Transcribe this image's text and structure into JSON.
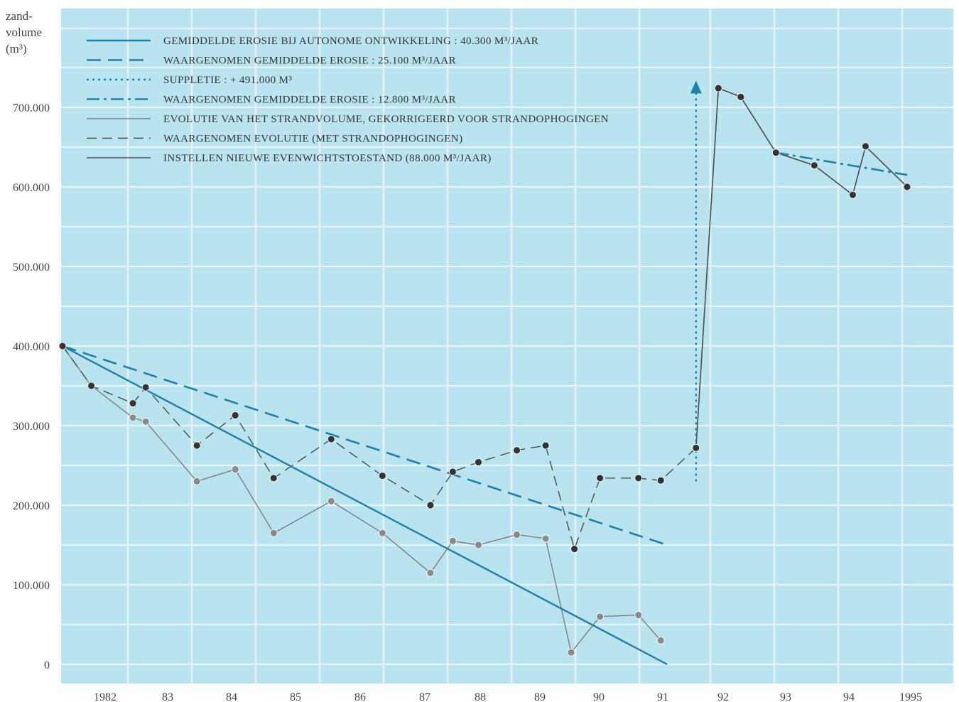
{
  "chart_data": {
    "type": "line",
    "y_label": [
      "zand-",
      "volume",
      "(m3)"
    ],
    "y_ticks": [
      "0",
      "100.000",
      "200.000",
      "300.000",
      "400.000",
      "500.000",
      "600.000",
      "700.000"
    ],
    "x_ticks": [
      "1982",
      "83",
      "84",
      "85",
      "86",
      "87",
      "88",
      "89",
      "90",
      "91",
      "92",
      "93",
      "94",
      "1995"
    ],
    "ylim": [
      0,
      700000
    ],
    "grid": true,
    "legend_position": "top-left",
    "colors": {
      "blue": "#1f7fa8",
      "dark": "#4a4a4a",
      "gray": "#7d7d7d",
      "background": "#b9e4ef",
      "grid": "#e2f4f9"
    },
    "legend": [
      {
        "text": "GEMIDDELDE EROSIE BIJ AUTONOME ONTWIKKELING : 40.300 M3/JAAR",
        "style": "solid-blue"
      },
      {
        "text": "WAARGENOMEN GEMIDDELDE EROSIE : 25.100 M3/JAAR",
        "style": "dashed-blue"
      },
      {
        "text": "SUPPLETIE : + 491.000 M3",
        "style": "dotted-blue"
      },
      {
        "text": "WAARGENOMEN GEMIDDELDE EROSIE : 12.800 M3/JAAR",
        "style": "dashdot-blue"
      },
      {
        "text": "EVOLUTIE VAN HET STRANDVOLUME, GEKORRIGEERD VOOR STRANDOPHOGINGEN",
        "style": "solid-gray"
      },
      {
        "text": "WAARGENOMEN EVOLUTIE (MET STRANDOPHOGINGEN)",
        "style": "dashed-dark"
      },
      {
        "text": "INSTELLEN NIEUWE EVENWICHTSTOESTAND (88.000 M3/JAAR)",
        "style": "solid-dark"
      }
    ],
    "series": [
      {
        "name": "EVOLUTIE VAN HET STRANDVOLUME, GEKORRIGEERD VOOR STRANDOPHOGINGEN",
        "style": "solid-gray",
        "points": [
          [
            1981.6,
            400000
          ],
          [
            1982.05,
            350000
          ],
          [
            1982.7,
            310000
          ],
          [
            1982.9,
            305000
          ],
          [
            1983.7,
            230000
          ],
          [
            1984.3,
            245000
          ],
          [
            1984.9,
            165000
          ],
          [
            1985.8,
            205000
          ],
          [
            1986.6,
            165000
          ],
          [
            1987.35,
            115000
          ],
          [
            1987.7,
            155000
          ],
          [
            1988.1,
            150000
          ],
          [
            1988.7,
            163000
          ],
          [
            1989.15,
            158000
          ],
          [
            1989.55,
            15000
          ],
          [
            1990.0,
            60000
          ],
          [
            1990.6,
            62000
          ],
          [
            1990.95,
            30000
          ]
        ]
      },
      {
        "name": "WAARGENOMEN EVOLUTIE (MET STRANDOPHOGINGEN)",
        "style": "dashed-dark",
        "points": [
          [
            1981.6,
            400000
          ],
          [
            1982.05,
            350000
          ],
          [
            1982.7,
            328000
          ],
          [
            1982.9,
            348000
          ],
          [
            1983.7,
            275000
          ],
          [
            1984.3,
            313000
          ],
          [
            1984.9,
            234000
          ],
          [
            1985.8,
            283000
          ],
          [
            1986.6,
            237000
          ],
          [
            1987.35,
            200000
          ],
          [
            1987.7,
            242000
          ],
          [
            1988.1,
            254000
          ],
          [
            1988.7,
            269000
          ],
          [
            1989.15,
            275000
          ],
          [
            1989.6,
            145000
          ],
          [
            1990.0,
            234000
          ],
          [
            1990.6,
            234000
          ],
          [
            1990.95,
            231000
          ],
          [
            1991.5,
            272000
          ]
        ]
      },
      {
        "name": "INSTELLEN NIEUWE EVENWICHTSTOESTAND (88.000 M3/JAAR)",
        "style": "solid-dark",
        "points": [
          [
            1991.5,
            272000
          ],
          [
            1991.85,
            724000
          ],
          [
            1992.2,
            713000
          ],
          [
            1992.75,
            643000
          ],
          [
            1993.35,
            627000
          ],
          [
            1993.95,
            590000
          ],
          [
            1994.15,
            651000
          ],
          [
            1994.8,
            600000
          ]
        ]
      },
      {
        "name": "GEMIDDELDE EROSIE BIJ AUTONOME ONTWIKKELING : 40.300 M3/JAAR",
        "style": "solid-blue",
        "points": [
          [
            1981.6,
            400000
          ],
          [
            1991.05,
            0
          ]
        ]
      },
      {
        "name": "WAARGENOMEN GEMIDDELDE EROSIE : 25.100 M3/JAAR",
        "style": "dashed-blue",
        "points": [
          [
            1981.6,
            400000
          ],
          [
            1991.05,
            150000
          ]
        ]
      },
      {
        "name": "SUPPLETIE : + 491.000 M3",
        "style": "dotted-blue",
        "points": [
          [
            1991.5,
            230000
          ],
          [
            1991.5,
            721000
          ]
        ]
      },
      {
        "name": "WAARGENOMEN GEMIDDELDE EROSIE : 12.800 M3/JAAR",
        "style": "dashdot-blue",
        "points": [
          [
            1992.75,
            643000
          ],
          [
            1994.8,
            615000
          ]
        ]
      }
    ],
    "markers": [
      {
        "series": 0,
        "indices": [
          1,
          2,
          3,
          4,
          5,
          6,
          7,
          8,
          9,
          10,
          11,
          12,
          13,
          14,
          15,
          16,
          17
        ],
        "fill": "#8a8a8a"
      },
      {
        "series": 1,
        "indices": [
          0,
          1,
          2,
          3,
          4,
          5,
          6,
          7,
          8,
          9,
          10,
          11,
          12,
          13,
          14,
          15,
          16,
          17,
          18
        ],
        "fill": "#333333"
      },
      {
        "series": 2,
        "indices": [
          1,
          2,
          3,
          4,
          5,
          6,
          7
        ],
        "fill": "#333333"
      }
    ]
  }
}
